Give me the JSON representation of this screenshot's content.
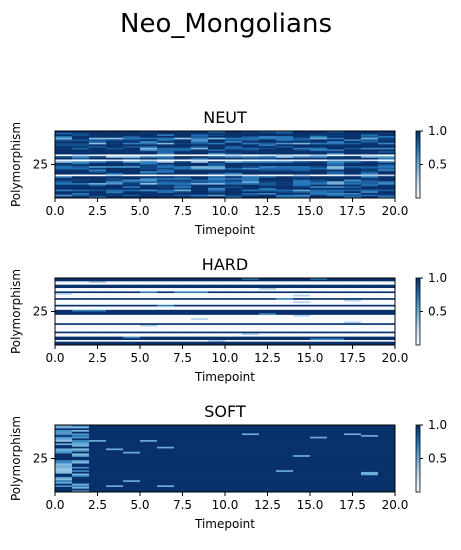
{
  "figure": {
    "suptitle": "Neo_Mongolians"
  },
  "colors": {
    "cmap_low": "#f7fbff",
    "cmap_mid": "#6baed6",
    "cmap_high": "#08306b",
    "axis": "#000000"
  },
  "chart_data": [
    {
      "type": "heatmap",
      "title": "NEUT",
      "xlabel": "Timepoint",
      "ylabel": "Polymorphism",
      "xlim": [
        0,
        20
      ],
      "xticks": [
        "0.0",
        "2.5",
        "5.0",
        "7.5",
        "10.0",
        "12.5",
        "15.0",
        "17.5",
        "20.0"
      ],
      "yticks": [
        "25"
      ],
      "colorbar": {
        "range": [
          0,
          1
        ],
        "ticks": [
          "0.5",
          "1.0"
        ]
      },
      "n_rows": 40,
      "n_cols": 20,
      "pattern": "mixed"
    },
    {
      "type": "heatmap",
      "title": "HARD",
      "xlabel": "Timepoint",
      "ylabel": "Polymorphism",
      "xlim": [
        0,
        20
      ],
      "xticks": [
        "0.0",
        "2.5",
        "5.0",
        "7.5",
        "10.0",
        "12.5",
        "15.0",
        "17.5",
        "20.0"
      ],
      "yticks": [
        "25"
      ],
      "colorbar": {
        "range": [
          0,
          1
        ],
        "ticks": [
          "0.5",
          "1.0"
        ]
      },
      "n_rows": 40,
      "n_cols": 20,
      "pattern": "binary"
    },
    {
      "type": "heatmap",
      "title": "SOFT",
      "xlabel": "Timepoint",
      "ylabel": "Polymorphism",
      "xlim": [
        0,
        20
      ],
      "xticks": [
        "0.0",
        "2.5",
        "5.0",
        "7.5",
        "10.0",
        "12.5",
        "15.0",
        "17.5",
        "20.0"
      ],
      "yticks": [
        "25"
      ],
      "colorbar": {
        "range": [
          0,
          1
        ],
        "ticks": [
          "0.5",
          "1.0"
        ]
      },
      "n_rows": 40,
      "n_cols": 20,
      "pattern": "mostly-high"
    }
  ]
}
